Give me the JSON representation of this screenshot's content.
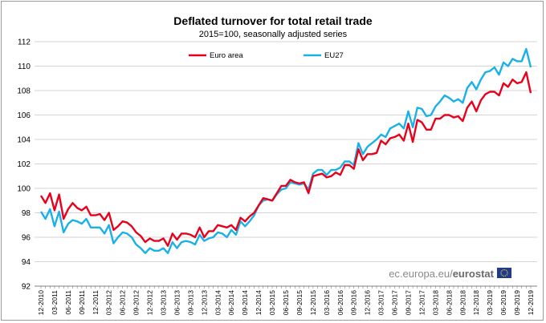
{
  "chart_data": {
    "type": "line",
    "title": "Deflated turnover for total retail trade",
    "subtitle": "2015=100, seasonally adjusted series",
    "ylim": [
      92,
      112
    ],
    "yticks": [
      92,
      94,
      96,
      98,
      100,
      102,
      104,
      106,
      108,
      110,
      112
    ],
    "grid": "horizontal",
    "legend_placement": "top-center",
    "x_tick_labels": [
      "12-2010",
      "03-2011",
      "06-2011",
      "09-2011",
      "12-2011",
      "03-2012",
      "06-2012",
      "09-2012",
      "12-2012",
      "03-2013",
      "06-2013",
      "09-2013",
      "12-2013",
      "03-2014",
      "06-2014",
      "09-2014",
      "12-2014",
      "03-2015",
      "06-2015",
      "09-2015",
      "12-2015",
      "03-2016",
      "06-2016",
      "09-2016",
      "12-2016",
      "03-2017",
      "06-2017",
      "09-2017",
      "12-2017",
      "03-2018",
      "06-2018",
      "09-2018",
      "12-2018",
      "03-2019",
      "06-2019",
      "09-2019",
      "12-2019"
    ],
    "series": [
      {
        "name": "Euro area",
        "color": "#e8001c",
        "values": [
          99.4,
          98.8,
          99.6,
          98.2,
          99.5,
          97.5,
          98.3,
          98.8,
          98.4,
          98.2,
          98.5,
          97.8,
          97.8,
          97.9,
          97.4,
          98.0,
          96.6,
          96.9,
          97.3,
          97.2,
          96.9,
          96.4,
          96.1,
          95.6,
          95.9,
          95.7,
          95.7,
          95.9,
          95.3,
          96.3,
          95.8,
          96.3,
          96.3,
          96.2,
          96.0,
          96.8,
          96.0,
          96.5,
          96.5,
          97.0,
          96.9,
          96.8,
          97.0,
          96.6,
          97.6,
          97.3,
          97.7,
          98.0,
          98.6,
          99.2,
          99.1,
          99.0,
          99.6,
          100.2,
          100.2,
          100.7,
          100.5,
          100.4,
          100.5,
          99.6,
          101.0,
          101.1,
          101.2,
          100.9,
          101.0,
          101.3,
          101.1,
          101.9,
          101.9,
          101.6,
          103.2,
          102.3,
          102.8,
          102.8,
          102.9,
          103.9,
          103.6,
          104.1,
          104.2,
          104.4,
          103.9,
          105.3,
          103.8,
          105.6,
          105.4,
          104.8,
          104.8,
          105.7,
          105.7,
          106.0,
          106.0,
          105.8,
          105.9,
          105.5,
          106.6,
          107.1,
          106.3,
          107.2,
          107.7,
          107.9,
          107.9,
          107.6,
          108.6,
          108.3,
          108.9,
          108.6,
          108.7,
          109.5,
          107.8
        ]
      },
      {
        "name": "EU27",
        "color": "#1ab0e8",
        "values": [
          98.1,
          97.5,
          98.3,
          96.9,
          98.1,
          96.4,
          97.1,
          97.4,
          97.3,
          97.1,
          97.5,
          96.8,
          96.8,
          96.8,
          96.3,
          97.0,
          95.5,
          96.0,
          96.4,
          96.3,
          96.0,
          95.4,
          95.1,
          94.7,
          95.1,
          94.9,
          94.9,
          95.1,
          94.7,
          95.6,
          95.1,
          95.6,
          95.7,
          95.6,
          95.4,
          96.2,
          95.7,
          95.9,
          96.0,
          96.4,
          96.3,
          96.0,
          96.6,
          96.2,
          97.3,
          96.9,
          97.3,
          97.8,
          98.6,
          99.0,
          99.1,
          99.0,
          99.5,
          99.9,
          100.0,
          100.5,
          100.4,
          100.3,
          100.4,
          99.9,
          101.2,
          101.5,
          101.5,
          101.1,
          101.5,
          101.5,
          101.7,
          102.2,
          102.2,
          101.9,
          103.7,
          102.8,
          103.4,
          103.7,
          104.0,
          104.4,
          104.2,
          104.9,
          105.1,
          105.3,
          104.9,
          106.3,
          105.0,
          106.6,
          106.5,
          105.9,
          106.0,
          106.7,
          107.1,
          107.6,
          107.4,
          107.1,
          107.3,
          107.0,
          108.2,
          108.7,
          108.1,
          108.9,
          109.5,
          109.6,
          109.9,
          109.3,
          110.3,
          110.0,
          110.6,
          110.4,
          110.4,
          111.4,
          109.9
        ]
      }
    ],
    "source": {
      "light": "ec.europa.eu/",
      "bold": "eurostat"
    }
  }
}
